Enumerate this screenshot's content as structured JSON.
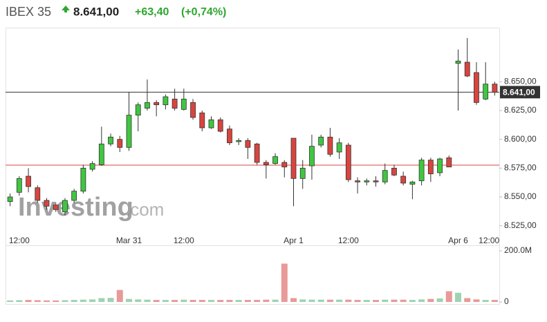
{
  "chart_data": {
    "type": "candlestick",
    "title": "IBEX 35",
    "price": "8.641,00",
    "change": "+63,40",
    "change_percent": "(+0,74%)",
    "watermark": [
      "Investing",
      ".com"
    ],
    "categories": [
      null,
      "12:00",
      null,
      null,
      null,
      null,
      null,
      null,
      null,
      null,
      null,
      null,
      null,
      "Mar 31",
      null,
      null,
      null,
      null,
      null,
      "12:00",
      null,
      null,
      null,
      null,
      null,
      null,
      null,
      null,
      null,
      null,
      null,
      "Apr 1",
      null,
      null,
      null,
      null,
      null,
      "12:00",
      null,
      null,
      null,
      null,
      null,
      null,
      null,
      null,
      null,
      null,
      null,
      "Apr 6",
      null,
      null,
      "12:00",
      null
    ],
    "open": [
      8546,
      8554,
      8568,
      8558,
      8547,
      8543,
      8537,
      8547,
      8555,
      8574,
      8578,
      8596,
      8600,
      8593,
      8621,
      8627,
      8632,
      8630,
      8635,
      8626,
      8632,
      8623,
      8610,
      8617,
      8609,
      8598,
      8599,
      8596,
      8580,
      8579,
      8580,
      8601,
      8566,
      8577,
      8595,
      8602,
      8589,
      8595,
      8564,
      8563,
      8564,
      8563,
      8575,
      8568,
      8561,
      8564,
      8582,
      8571,
      8584,
      8666,
      8667,
      8658,
      8635,
      8648
    ],
    "high": [
      8553,
      8568,
      8575,
      8560,
      8549,
      8545,
      8549,
      8557,
      8578,
      8581,
      8611,
      8605,
      8603,
      8641,
      8632,
      8652,
      8634,
      8639,
      8644,
      8644,
      8635,
      8625,
      8620,
      8619,
      8612,
      8601,
      8601,
      8597,
      8582,
      8588,
      8582,
      8601,
      8582,
      8604,
      8604,
      8610,
      8601,
      8597,
      8567,
      8566,
      8568,
      8579,
      8578,
      8572,
      8564,
      8584,
      8584,
      8584,
      8586,
      8678,
      8688,
      8667,
      8667,
      8650
    ],
    "low": [
      8542,
      8551,
      8554,
      8545,
      8539,
      8537,
      8534,
      8545,
      8553,
      8572,
      8577,
      8594,
      8589,
      8590,
      8607,
      8625,
      8620,
      8626,
      8625,
      8625,
      8617,
      8607,
      8609,
      8606,
      8595,
      8595,
      8583,
      8578,
      8566,
      8578,
      8567,
      8542,
      8557,
      8565,
      8593,
      8585,
      8583,
      8563,
      8553,
      8560,
      8559,
      8561,
      8568,
      8560,
      8548,
      8560,
      8563,
      8568,
      8576,
      8625,
      8654,
      8630,
      8634,
      8638
    ],
    "close": [
      8550,
      8566,
      8559,
      8547,
      8542,
      8539,
      8547,
      8555,
      8575,
      8579,
      8596,
      8602,
      8593,
      8621,
      8630,
      8632,
      8630,
      8637,
      8627,
      8635,
      8619,
      8610,
      8617,
      8607,
      8597,
      8599,
      8593,
      8580,
      8578,
      8585,
      8576,
      8566,
      8575,
      8594,
      8602,
      8587,
      8597,
      8565,
      8563,
      8564,
      8563,
      8573,
      8569,
      8562,
      8563,
      8582,
      8570,
      8583,
      8576,
      8668,
      8655,
      8632,
      8648,
      8641
    ],
    "volume": [
      6000000,
      7000000,
      8000000,
      7000000,
      6000000,
      6000000,
      7000000,
      8000000,
      9000000,
      10000000,
      15000000,
      16000000,
      47000000,
      12000000,
      10000000,
      9000000,
      8000000,
      8000000,
      8000000,
      9000000,
      8000000,
      8000000,
      8000000,
      8000000,
      8000000,
      8000000,
      8000000,
      8000000,
      9000000,
      9000000,
      150000000,
      15000000,
      10000000,
      9000000,
      9000000,
      9000000,
      9000000,
      9000000,
      8000000,
      8000000,
      8000000,
      9000000,
      9000000,
      9000000,
      8000000,
      10000000,
      12000000,
      14000000,
      42000000,
      36000000,
      15000000,
      10000000,
      8000000,
      8000000
    ],
    "up_color": "#3fc73f",
    "down_color": "#d9443f",
    "ylim": [
      8508,
      8697
    ],
    "yticks": [
      {
        "value": 8525,
        "label": "8.525,00"
      },
      {
        "value": 8550,
        "label": "8.550,00"
      },
      {
        "value": 8575,
        "label": "8.575,00"
      },
      {
        "value": 8600,
        "label": "8.600,00"
      },
      {
        "value": 8625,
        "label": "8.625,00"
      },
      {
        "value": 8650,
        "label": "8.650,00"
      }
    ],
    "last_price": {
      "value": 8641,
      "label": "8.641,00"
    },
    "previous_close": 8577.6,
    "volume_ylim": [
      0,
      200000000
    ],
    "volume_ticks": [
      0,
      {
        "value": 200000000,
        "label": "200.0M"
      }
    ],
    "grid": false
  }
}
